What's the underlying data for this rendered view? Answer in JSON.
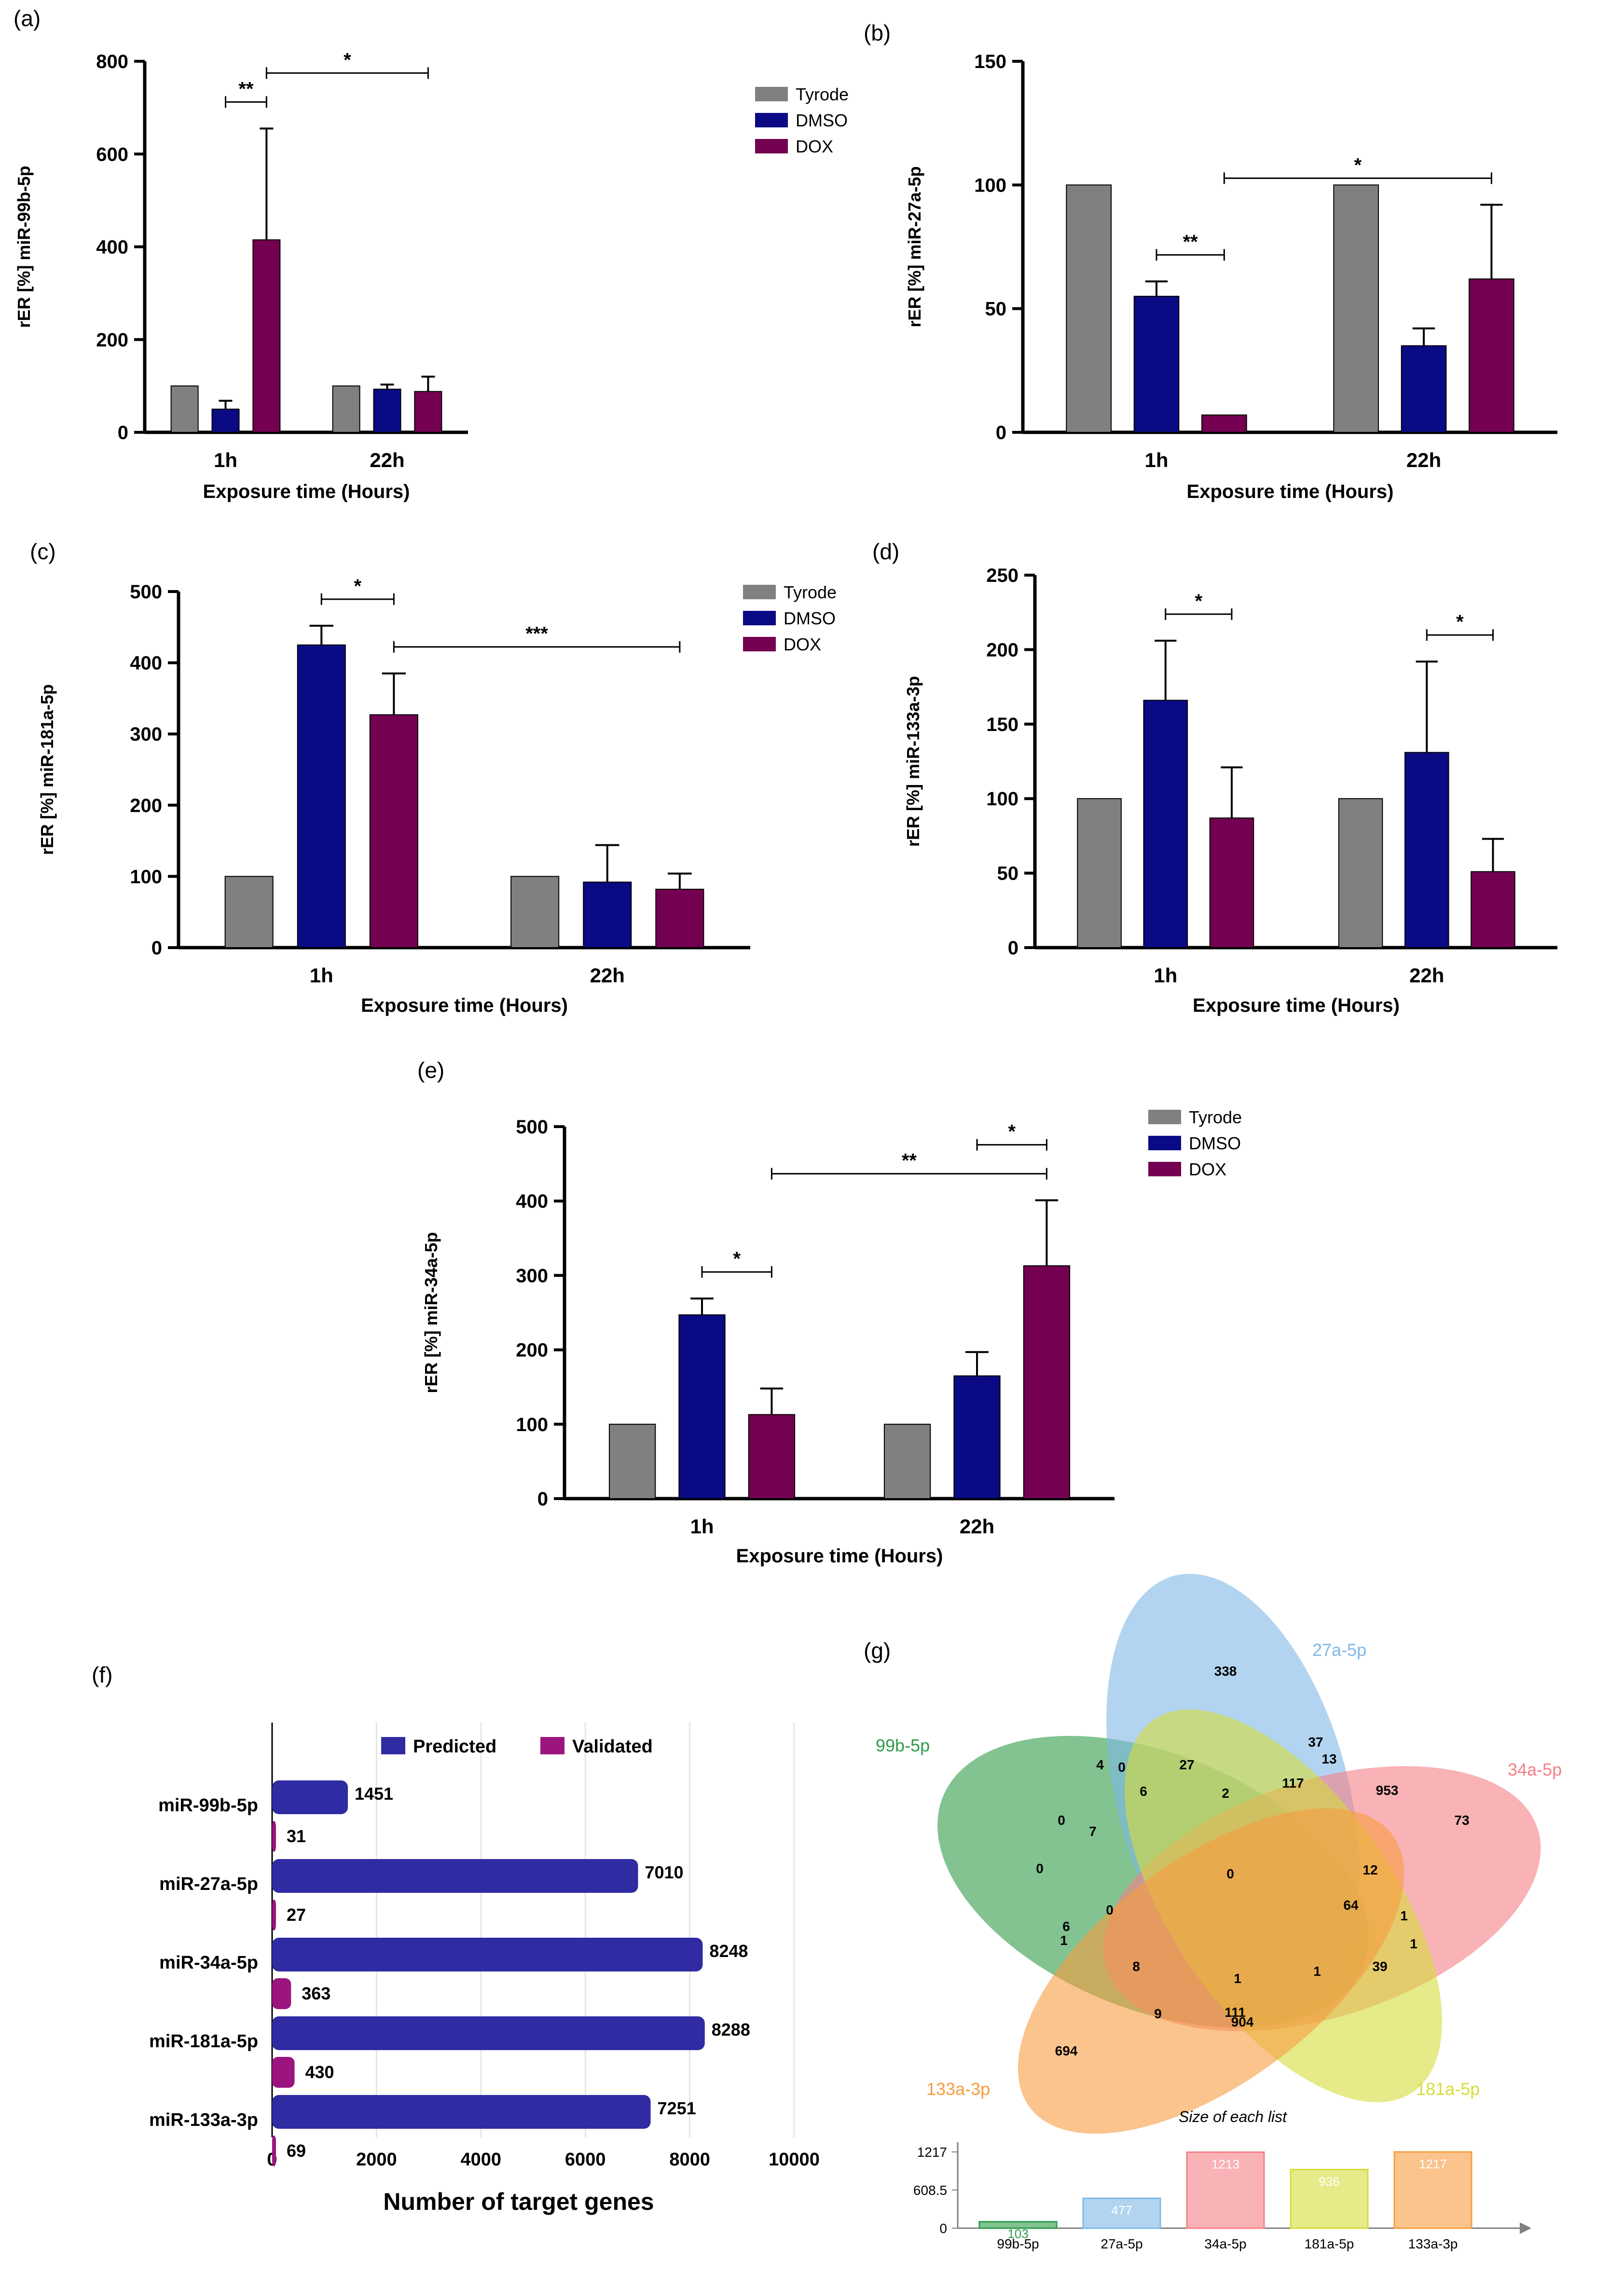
{
  "colors": {
    "Tyrode": "#808080",
    "DMSO": "#0a0a85",
    "DOX": "#730050",
    "predicted": "#2f2ba3",
    "validated": "#9c157e",
    "axis": "#000000",
    "grid": "#e6e6e6",
    "venn": {
      "99b-5p": "#2e9b48",
      "27a-5p": "#7fb8e6",
      "34a-5p": "#f57f86",
      "181a-5p": "#d6dc3a",
      "133a-3p": "#f79c3f"
    }
  },
  "chart_data": [
    {
      "panel": "(a)",
      "type": "bar",
      "categories": [
        "1h",
        "22h"
      ],
      "series": [
        {
          "name": "Tyrode",
          "values": [
            100,
            100
          ],
          "errors": [
            0,
            0
          ]
        },
        {
          "name": "DMSO",
          "values": [
            50,
            93
          ],
          "errors": [
            18,
            10
          ]
        },
        {
          "name": "DOX",
          "values": [
            415,
            88
          ],
          "errors": [
            240,
            32
          ]
        }
      ],
      "xlabel": "Exposure time (Hours)",
      "ylabel": "rER [%] miR-99b-5p",
      "ylim": [
        0,
        800
      ],
      "yticks": [
        0,
        200,
        400,
        600,
        800
      ],
      "legend": [
        "Tyrode",
        "DMSO",
        "DOX"
      ],
      "significance": [
        {
          "from": [
            0,
            1
          ],
          "to": [
            0,
            2
          ],
          "label": "**"
        },
        {
          "from": [
            0,
            2
          ],
          "to": [
            1,
            2
          ],
          "label": "*"
        }
      ]
    },
    {
      "panel": "(b)",
      "type": "bar",
      "categories": [
        "1h",
        "22h"
      ],
      "series": [
        {
          "name": "Tyrode",
          "values": [
            100,
            100
          ],
          "errors": [
            0,
            0
          ]
        },
        {
          "name": "DMSO",
          "values": [
            55,
            35
          ],
          "errors": [
            6,
            7
          ]
        },
        {
          "name": "DOX",
          "values": [
            7,
            62
          ],
          "errors": [
            0,
            30
          ]
        }
      ],
      "xlabel": "Exposure time (Hours)",
      "ylabel": "rER [%] miR-27a-5p",
      "ylim": [
        0,
        150
      ],
      "yticks": [
        0,
        50,
        100,
        150
      ],
      "legend": [],
      "significance": [
        {
          "from": [
            0,
            1
          ],
          "to": [
            0,
            2
          ],
          "label": "**"
        },
        {
          "from": [
            0,
            2
          ],
          "to": [
            1,
            2
          ],
          "label": "*"
        }
      ]
    },
    {
      "panel": "(c)",
      "type": "bar",
      "categories": [
        "1h",
        "22h"
      ],
      "series": [
        {
          "name": "Tyrode",
          "values": [
            100,
            100
          ],
          "errors": [
            0,
            0
          ]
        },
        {
          "name": "DMSO",
          "values": [
            425,
            92
          ],
          "errors": [
            27,
            52
          ]
        },
        {
          "name": "DOX",
          "values": [
            327,
            82
          ],
          "errors": [
            58,
            22
          ]
        }
      ],
      "xlabel": "Exposure time (Hours)",
      "ylabel": "rER [%] miR-181a-5p",
      "ylim": [
        0,
        500
      ],
      "yticks": [
        0,
        100,
        200,
        300,
        400,
        500
      ],
      "legend": [
        "Tyrode",
        "DMSO",
        "DOX"
      ],
      "significance": [
        {
          "from": [
            0,
            1
          ],
          "to": [
            0,
            2
          ],
          "label": "*"
        },
        {
          "from": [
            0,
            2
          ],
          "to": [
            1,
            2
          ],
          "label": "***"
        }
      ]
    },
    {
      "panel": "(d)",
      "type": "bar",
      "categories": [
        "1h",
        "22h"
      ],
      "series": [
        {
          "name": "Tyrode",
          "values": [
            100,
            100
          ],
          "errors": [
            0,
            0
          ]
        },
        {
          "name": "DMSO",
          "values": [
            166,
            131
          ],
          "errors": [
            40,
            61
          ]
        },
        {
          "name": "DOX",
          "values": [
            87,
            51
          ],
          "errors": [
            34,
            22
          ]
        }
      ],
      "xlabel": "Exposure time (Hours)",
      "ylabel": "rER [%] miR-133a-3p",
      "ylim": [
        0,
        250
      ],
      "yticks": [
        0,
        50,
        100,
        150,
        200,
        250
      ],
      "legend": [],
      "significance": [
        {
          "from": [
            0,
            1
          ],
          "to": [
            0,
            2
          ],
          "label": "*"
        },
        {
          "from": [
            1,
            1
          ],
          "to": [
            1,
            2
          ],
          "label": "*"
        }
      ]
    },
    {
      "panel": "(e)",
      "type": "bar",
      "categories": [
        "1h",
        "22h"
      ],
      "series": [
        {
          "name": "Tyrode",
          "values": [
            100,
            100
          ],
          "errors": [
            0,
            0
          ]
        },
        {
          "name": "DMSO",
          "values": [
            247,
            165
          ],
          "errors": [
            22,
            32
          ]
        },
        {
          "name": "DOX",
          "values": [
            113,
            313
          ],
          "errors": [
            35,
            88
          ]
        }
      ],
      "xlabel": "Exposure time (Hours)",
      "ylabel": "rER [%] miR-34a-5p",
      "ylim": [
        0,
        500
      ],
      "yticks": [
        0,
        100,
        200,
        300,
        400,
        500
      ],
      "legend": [
        "Tyrode",
        "DMSO",
        "DOX"
      ],
      "significance": [
        {
          "from": [
            0,
            1
          ],
          "to": [
            0,
            2
          ],
          "label": "*"
        },
        {
          "from": [
            0,
            2
          ],
          "to": [
            1,
            2
          ],
          "label": "**"
        },
        {
          "from": [
            1,
            1
          ],
          "to": [
            1,
            2
          ],
          "label": "*"
        }
      ]
    },
    {
      "panel": "(f)",
      "type": "bar",
      "orientation": "horizontal",
      "categories": [
        "miR-99b-5p",
        "miR-27a-5p",
        "miR-34a-5p",
        "miR-181a-5p",
        "miR-133a-3p"
      ],
      "series": [
        {
          "name": "Predicted",
          "values": [
            1451,
            7010,
            8248,
            8288,
            7251
          ]
        },
        {
          "name": "Validated",
          "values": [
            31,
            27,
            363,
            430,
            69
          ]
        }
      ],
      "xlabel": "Number of target genes",
      "ylabel": "",
      "xlim": [
        0,
        10000
      ],
      "xticks": [
        0,
        2000,
        4000,
        6000,
        8000,
        10000
      ],
      "legend": [
        "Predicted",
        "Validated"
      ],
      "legend_position": "top"
    },
    {
      "panel": "(g)",
      "type": "venn",
      "sets": [
        "99b-5p",
        "27a-5p",
        "34a-5p",
        "181a-5p",
        "133a-3p"
      ],
      "region_counts": [
        "338",
        "27",
        "37",
        "13",
        "4",
        "0",
        "6",
        "2",
        "117",
        "953",
        "73",
        "0",
        "7",
        "0",
        "12",
        "0",
        "0",
        "64",
        "1",
        "1",
        "6",
        "1",
        "8",
        "1",
        "1",
        "39",
        "9",
        "111",
        "904",
        "694"
      ],
      "set_sizes_title": "Size of each list",
      "set_sizes": {
        "categories": [
          "99b-5p",
          "27a-5p",
          "34a-5p",
          "181a-5p",
          "133a-3p"
        ],
        "values": [
          103,
          477,
          1213,
          936,
          1217
        ]
      },
      "size_yticks": [
        "0",
        "608.5",
        "1217"
      ]
    }
  ]
}
